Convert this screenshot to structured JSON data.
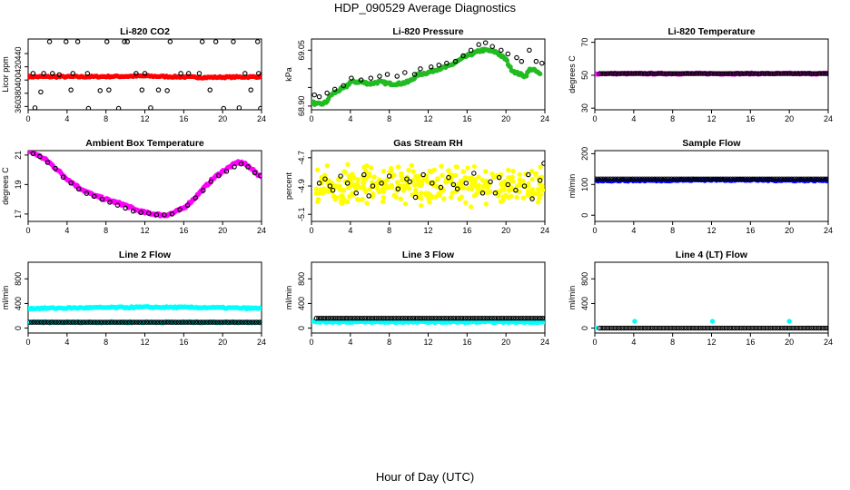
{
  "figure": {
    "title": "HDP_090529  Average Diagnostics",
    "xlabel": "Hour of Day (UTC)"
  },
  "chart_data": [
    {
      "type": "scatter",
      "title": "Li-820 CO2",
      "ylabel": "Licor ppm",
      "xlim": [
        0,
        24
      ],
      "ylim": [
        355,
        462
      ],
      "xticks": [
        "0",
        "4",
        "8",
        "12",
        "16",
        "20",
        "24"
      ],
      "yticks": [
        360,
        380,
        400,
        420,
        440
      ],
      "series": [
        {
          "color": "#ff0000",
          "marker": "circle-filled",
          "kind": "flat",
          "x_range": [
            0,
            24
          ],
          "values": [
            405,
            405,
            406,
            404,
            405
          ]
        },
        {
          "color": "#000000",
          "marker": "circle-open",
          "kind": "scatter",
          "x": [
            0.7,
            1.3,
            2.2,
            3.9,
            5.1,
            2.5,
            3.2,
            4.6,
            6.2,
            7.4,
            8.3,
            9.9,
            10.2,
            11.1,
            12.0,
            12.6,
            13.4,
            14.6,
            15.7,
            16.5,
            17.9,
            18.7,
            20.1,
            21.1,
            22.3,
            23.6,
            23.9,
            0.5,
            1.6,
            6.1,
            11.7,
            17.6,
            21.7,
            4.4,
            8.1,
            9.3,
            14.3,
            19.3,
            22.9,
            23.7
          ],
          "y": [
            358,
            382,
            458,
            458,
            458,
            410,
            408,
            410,
            357,
            384,
            385,
            458,
            458,
            410,
            410,
            358,
            385,
            458,
            410,
            410,
            458,
            385,
            357,
            458,
            410,
            458,
            357,
            410,
            410,
            410,
            385,
            410,
            358,
            385,
            458,
            357,
            384,
            458,
            385,
            410
          ]
        }
      ]
    },
    {
      "type": "scatter",
      "title": "Li-820 Pressure",
      "ylabel": "kPa",
      "xlim": [
        0,
        24
      ],
      "ylim": [
        68.89,
        69.08
      ],
      "xticks": [
        "0",
        "4",
        "8",
        "12",
        "16",
        "20",
        "24"
      ],
      "yticks": [
        68.9,
        68.95,
        69.0,
        69.05
      ],
      "ytick_labels": [
        "68.90",
        "",
        "",
        "69.05"
      ],
      "series": [
        {
          "color": "#22bb22",
          "marker": "circle-filled",
          "kind": "line-band",
          "x": [
            0.1,
            0.5,
            1,
            1.5,
            2,
            3,
            3.5,
            4,
            5,
            6,
            7,
            8,
            9,
            10,
            11,
            12,
            13,
            14,
            15,
            16,
            17,
            17.5,
            18,
            19,
            20,
            20.5,
            21,
            22,
            22.5,
            23,
            23.5
          ],
          "y": [
            68.91,
            68.905,
            68.905,
            68.91,
            68.93,
            68.945,
            68.95,
            68.965,
            68.965,
            68.96,
            68.965,
            68.96,
            68.96,
            68.965,
            68.985,
            68.99,
            69.0,
            69.005,
            69.02,
            69.035,
            69.045,
            69.05,
            69.05,
            69.045,
            69.025,
            69.0,
            68.99,
            68.98,
            69.0,
            68.995,
            68.985
          ]
        },
        {
          "color": "#000000",
          "marker": "circle-open",
          "kind": "scatter",
          "x": [
            0.3,
            0.8,
            1.6,
            2.4,
            3.3,
            4.1,
            5.1,
            6.1,
            7.0,
            7.8,
            8.8,
            9.6,
            10.6,
            11.2,
            12.3,
            13.1,
            13.9,
            14.8,
            15.6,
            16.4,
            17.2,
            17.9,
            18.6,
            19.5,
            20.2,
            21.1,
            21.6,
            22.4,
            23.1,
            23.7
          ],
          "y": [
            68.93,
            68.925,
            68.935,
            68.945,
            68.955,
            68.975,
            68.97,
            68.975,
            68.98,
            68.985,
            68.98,
            68.99,
            68.985,
            69.0,
            69.005,
            69.01,
            69.015,
            69.02,
            69.035,
            69.05,
            69.065,
            69.07,
            69.06,
            69.05,
            69.04,
            69.03,
            69.02,
            69.05,
            69.02,
            69.015
          ]
        }
      ]
    },
    {
      "type": "scatter",
      "title": "Li-820 Temperature",
      "ylabel": "degrees C",
      "xlim": [
        0,
        24
      ],
      "ylim": [
        29,
        72
      ],
      "xticks": [
        "0",
        "4",
        "8",
        "12",
        "16",
        "20",
        "24"
      ],
      "yticks": [
        30,
        50,
        70
      ],
      "series": [
        {
          "color": "#ff00ff",
          "marker": "circle-filled",
          "kind": "flat",
          "x_range": [
            0,
            24
          ],
          "values": [
            51,
            51,
            51,
            51,
            51
          ]
        },
        {
          "color": "#000000",
          "marker": "circle-open",
          "kind": "flat-open",
          "x_range": [
            0.5,
            24
          ],
          "values": [
            51,
            51,
            51,
            51,
            51
          ]
        }
      ]
    },
    {
      "type": "scatter",
      "title": "Ambient Box Temperature",
      "ylabel": "degrees C",
      "xlim": [
        0,
        24
      ],
      "ylim": [
        16.5,
        21.3
      ],
      "xticks": [
        "0",
        "4",
        "8",
        "12",
        "16",
        "20",
        "24"
      ],
      "yticks": [
        17,
        19,
        21
      ],
      "series": [
        {
          "color": "#ff00ff",
          "marker": "circle-filled",
          "kind": "line-band",
          "x": [
            0,
            1,
            2,
            3,
            4,
            5,
            6,
            7,
            8,
            9,
            10,
            11,
            12,
            13,
            14,
            15,
            16,
            17,
            18,
            19,
            20,
            21,
            21.5,
            22,
            22.5,
            23,
            23.5,
            24
          ],
          "y": [
            21.3,
            21.0,
            20.6,
            20.0,
            19.4,
            18.9,
            18.5,
            18.2,
            18.0,
            17.8,
            17.6,
            17.3,
            17.1,
            17.0,
            16.9,
            17.1,
            17.4,
            18.0,
            18.7,
            19.4,
            19.9,
            20.3,
            20.5,
            20.5,
            20.3,
            20.1,
            19.7,
            19.6
          ]
        },
        {
          "color": "#000000",
          "marker": "circle-open",
          "kind": "scatter",
          "x": [
            0.5,
            1.2,
            2.0,
            2.8,
            3.6,
            4.4,
            5.2,
            6.0,
            6.8,
            7.6,
            8.4,
            9.2,
            10.0,
            10.8,
            11.6,
            12.4,
            13.2,
            14.0,
            14.8,
            15.6,
            16.4,
            17.2,
            18.0,
            18.8,
            19.6,
            20.4,
            21.2,
            21.9,
            22.6,
            23.3,
            23.9
          ],
          "y": [
            21.1,
            20.9,
            20.5,
            20.1,
            19.5,
            19.1,
            18.7,
            18.4,
            18.2,
            18.0,
            17.8,
            17.6,
            17.4,
            17.2,
            17.1,
            17.05,
            16.95,
            16.95,
            17.0,
            17.3,
            17.6,
            18.1,
            18.6,
            19.2,
            19.6,
            19.9,
            20.2,
            20.4,
            20.2,
            19.8,
            19.6
          ]
        }
      ]
    },
    {
      "type": "scatter",
      "title": "Gas Stream RH",
      "ylabel": "percent",
      "xlim": [
        0,
        24
      ],
      "ylim": [
        -5.15,
        -4.65
      ],
      "xticks": [
        "0",
        "4",
        "8",
        "12",
        "16",
        "20",
        "24"
      ],
      "yticks": [
        -5.1,
        -4.9,
        -4.7
      ],
      "series": [
        {
          "color": "#ffff00",
          "marker": "circle-filled",
          "kind": "noise",
          "x_range": [
            0.5,
            24
          ],
          "y_center": -4.9,
          "y_spread": 0.11,
          "n": 360
        },
        {
          "color": "#000000",
          "marker": "circle-open",
          "kind": "scatter",
          "x": [
            0.8,
            1.4,
            2.2,
            3.0,
            3.7,
            4.6,
            5.4,
            6.3,
            7.2,
            8.0,
            8.9,
            9.8,
            10.7,
            11.5,
            12.4,
            13.3,
            14.1,
            15.0,
            15.9,
            16.7,
            17.6,
            18.4,
            19.3,
            20.2,
            21.0,
            21.9,
            22.7,
            23.5,
            23.9,
            1.9,
            5.9,
            10.1,
            14.6,
            18.9,
            22.3
          ],
          "y": [
            -4.88,
            -4.85,
            -4.93,
            -4.83,
            -4.88,
            -4.95,
            -4.82,
            -4.9,
            -4.88,
            -4.83,
            -4.92,
            -4.85,
            -4.98,
            -4.82,
            -4.88,
            -4.91,
            -4.84,
            -4.92,
            -4.88,
            -4.81,
            -4.95,
            -4.87,
            -4.84,
            -4.89,
            -4.93,
            -4.9,
            -4.99,
            -4.86,
            -4.74,
            -4.9,
            -4.97,
            -4.87,
            -4.89,
            -4.95,
            -4.82
          ]
        }
      ]
    },
    {
      "type": "scatter",
      "title": "Sample Flow",
      "ylabel": "ml/min",
      "xlim": [
        0,
        24
      ],
      "ylim": [
        -20,
        210
      ],
      "xticks": [
        "0",
        "4",
        "8",
        "12",
        "16",
        "20",
        "24"
      ],
      "yticks": [
        0,
        100,
        200
      ],
      "series": [
        {
          "color": "#0000ff",
          "marker": "circle-filled",
          "kind": "flat",
          "x_range": [
            0,
            24
          ],
          "values": [
            113,
            113,
            115,
            114,
            113
          ]
        },
        {
          "color": "#000000",
          "marker": "circle-open",
          "kind": "flat-open",
          "x_range": [
            0.1,
            24
          ],
          "values": [
            118,
            118,
            118,
            118,
            118
          ]
        }
      ]
    },
    {
      "type": "scatter",
      "title": "Line 2 Flow",
      "ylabel": "ml/min",
      "xlim": [
        0,
        24
      ],
      "ylim": [
        -80,
        1070
      ],
      "xticks": [
        "0",
        "4",
        "8",
        "12",
        "16",
        "20",
        "24"
      ],
      "yticks": [
        0,
        400,
        800
      ],
      "series": [
        {
          "color": "#00ffff",
          "marker": "circle-filled",
          "kind": "flat",
          "x_range": [
            0,
            24
          ],
          "values": [
            320,
            330,
            340,
            335,
            320
          ]
        },
        {
          "color": "#00ffff",
          "marker": "circle-filled",
          "kind": "flat",
          "x_range": [
            0,
            24
          ],
          "values": [
            95,
            95,
            95,
            95,
            95
          ]
        },
        {
          "color": "#000000",
          "marker": "circle-open",
          "kind": "flat-open",
          "x_range": [
            0.1,
            24
          ],
          "values": [
            95,
            95,
            95,
            95,
            95
          ]
        }
      ]
    },
    {
      "type": "scatter",
      "title": "Line 3 Flow",
      "ylabel": "ml/min",
      "xlim": [
        0,
        24
      ],
      "ylim": [
        -80,
        1070
      ],
      "xticks": [
        "0",
        "4",
        "8",
        "12",
        "16",
        "20",
        "24"
      ],
      "yticks": [
        0,
        400,
        800
      ],
      "series": [
        {
          "color": "#00ffff",
          "marker": "circle-filled",
          "kind": "flat",
          "x_range": [
            0,
            24
          ],
          "values": [
            105,
            100,
            100,
            100,
            100
          ]
        },
        {
          "color": "#000000",
          "marker": "circle-open",
          "kind": "flat-open",
          "x_range": [
            0.5,
            24
          ],
          "values": [
            160,
            160,
            160,
            160,
            160
          ]
        }
      ]
    },
    {
      "type": "scatter",
      "title": "Line 4 (LT) Flow",
      "ylabel": "ml/min",
      "xlim": [
        0,
        24
      ],
      "ylim": [
        -80,
        1070
      ],
      "xticks": [
        "0",
        "4",
        "8",
        "12",
        "16",
        "20",
        "24"
      ],
      "yticks": [
        0,
        400,
        800
      ],
      "series": [
        {
          "color": "#00ffff",
          "marker": "circle-filled",
          "kind": "scatter",
          "x": [
            0.1,
            4.1,
            12.1,
            20.0
          ],
          "y": [
            0,
            110,
            110,
            110
          ]
        },
        {
          "color": "#000000",
          "marker": "circle-open",
          "kind": "flat-open",
          "x_range": [
            0.5,
            24
          ],
          "values": [
            0,
            0,
            0,
            0,
            0
          ]
        }
      ]
    }
  ]
}
